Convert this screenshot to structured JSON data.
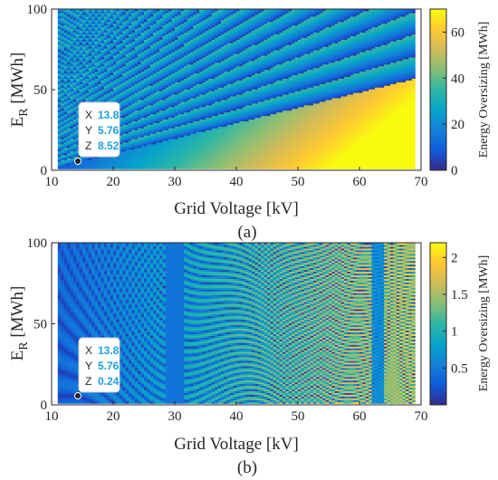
{
  "chart_data": [
    {
      "type": "heatmap",
      "caption": "(a)",
      "xlabel": "Grid Voltage [kV]",
      "ylabel_main": "E",
      "ylabel_sub": "R",
      "ylabel_tail": " [MWh]",
      "xlim": [
        10,
        70
      ],
      "ylim": [
        0,
        100
      ],
      "x_range_data": [
        11,
        69
      ],
      "y_range_data": [
        1,
        100
      ],
      "xticks": [
        10,
        20,
        30,
        40,
        50,
        60,
        70
      ],
      "yticks": [
        0,
        50,
        100
      ],
      "colorbar": {
        "label": "Energy Oversizing [MWh]",
        "range": [
          0,
          70
        ],
        "ticks": [
          0,
          20,
          40,
          60
        ],
        "tick_labels": [
          "0",
          "20",
          "40",
          "60"
        ],
        "colormap": "parula"
      },
      "datatip": {
        "x_key": "X",
        "x": "13.8",
        "y_key": "Y",
        "y": "5.76",
        "z_key": "Z",
        "z": "8.52"
      }
    },
    {
      "type": "heatmap",
      "caption": "(b)",
      "xlabel": "Grid Voltage [kV]",
      "ylabel_main": "E",
      "ylabel_sub": "R",
      "ylabel_tail": " [MWh]",
      "xlim": [
        10,
        70
      ],
      "ylim": [
        0,
        100
      ],
      "x_range_data": [
        11,
        69
      ],
      "y_range_data": [
        1,
        100
      ],
      "xticks": [
        10,
        20,
        30,
        40,
        50,
        60,
        70
      ],
      "yticks": [
        0,
        50,
        100
      ],
      "colorbar": {
        "label": "Energy Oversizing [MWh]",
        "range": [
          0,
          2.2
        ],
        "ticks": [
          0.5,
          1,
          1.5,
          2
        ],
        "tick_labels": [
          "0.5",
          "1",
          "1.5",
          "2"
        ],
        "colormap": "parula"
      },
      "datatip": {
        "x_key": "X",
        "x": "13.8",
        "y_key": "Y",
        "y": "5.76",
        "z_key": "Z",
        "z": "0.24"
      }
    }
  ]
}
